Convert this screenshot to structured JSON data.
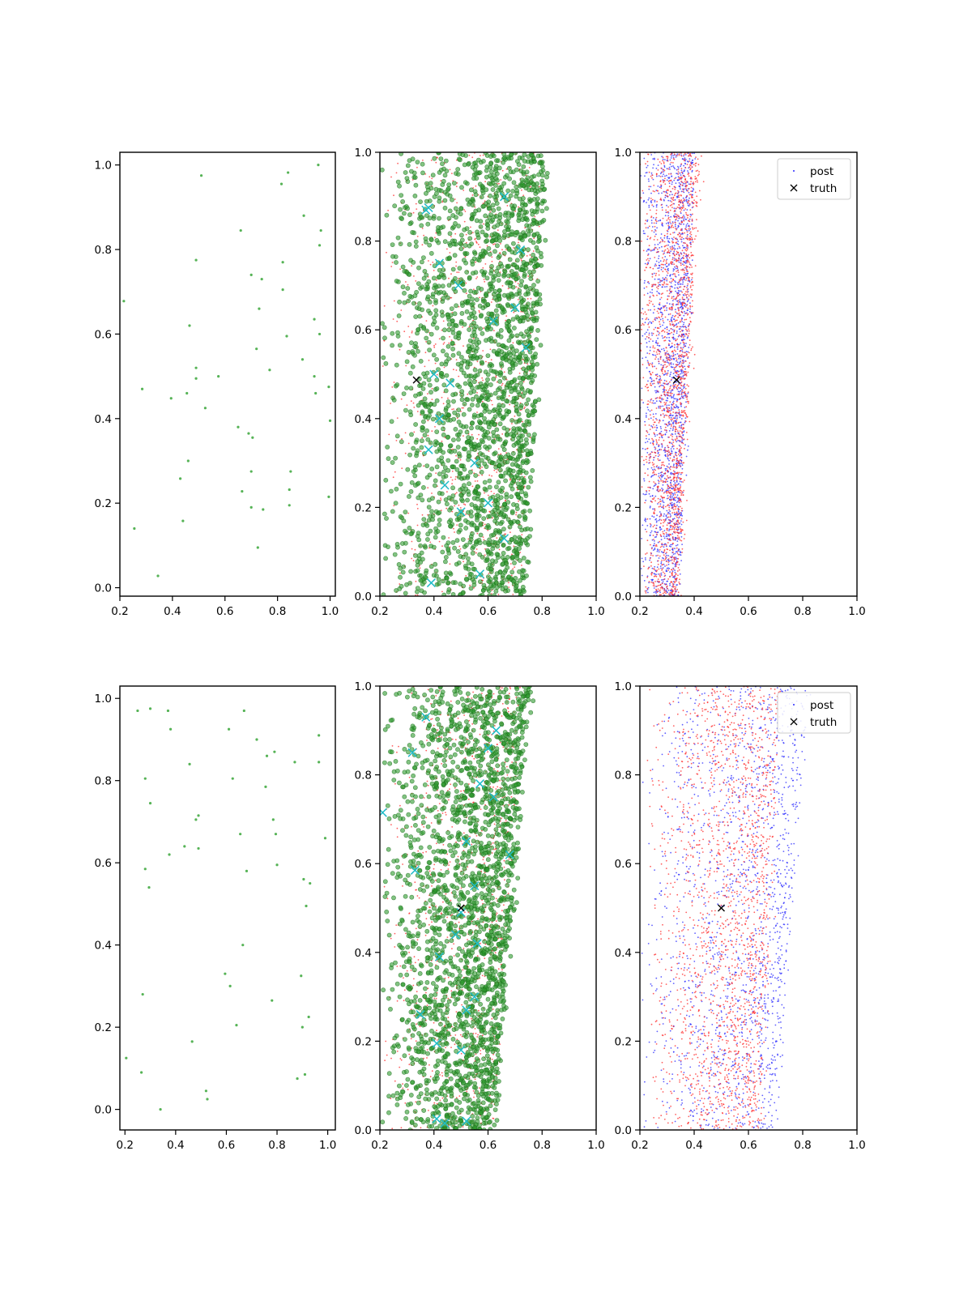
{
  "figure": {
    "rows": 2,
    "cols": 3
  },
  "chart_data": [
    {
      "panel": "top-left",
      "type": "scatter",
      "xlim": [
        0.2,
        1.02
      ],
      "ylim": [
        -0.02,
        1.03
      ],
      "xticks": [
        0.2,
        0.4,
        0.6,
        0.8,
        1.0
      ],
      "xtick_labels": [
        "0.2",
        "0.4",
        "0.6",
        "0.8",
        "1.0"
      ],
      "yticks": [
        0.0,
        0.2,
        0.4,
        0.6,
        0.8,
        1.0
      ],
      "ytick_labels": [
        "0.0",
        "0.2",
        "0.4",
        "0.6",
        "0.8",
        "1.0"
      ],
      "grid": false,
      "series": [
        {
          "color": "#2ca02c",
          "marker": "point",
          "size": 1.6,
          "points": [
            [
              0.51,
              0.975
            ],
            [
              0.84,
              0.982
            ],
            [
              0.955,
              1.0
            ],
            [
              0.815,
              0.955
            ],
            [
              0.9,
              0.88
            ],
            [
              0.66,
              0.845
            ],
            [
              0.965,
              0.845
            ],
            [
              0.96,
              0.81
            ],
            [
              0.49,
              0.775
            ],
            [
              0.82,
              0.77
            ],
            [
              0.7,
              0.74
            ],
            [
              0.74,
              0.73
            ],
            [
              0.82,
              0.705
            ],
            [
              0.215,
              0.678
            ],
            [
              0.73,
              0.66
            ],
            [
              0.94,
              0.635
            ],
            [
              0.465,
              0.62
            ],
            [
              0.96,
              0.6
            ],
            [
              0.835,
              0.595
            ],
            [
              0.72,
              0.565
            ],
            [
              0.895,
              0.54
            ],
            [
              0.49,
              0.52
            ],
            [
              0.575,
              0.5
            ],
            [
              0.49,
              0.495
            ],
            [
              0.77,
              0.515
            ],
            [
              0.94,
              0.5
            ],
            [
              0.285,
              0.47
            ],
            [
              0.995,
              0.475
            ],
            [
              0.455,
              0.46
            ],
            [
              0.945,
              0.46
            ],
            [
              0.395,
              0.448
            ],
            [
              0.525,
              0.425
            ],
            [
              1.0,
              0.395
            ],
            [
              0.65,
              0.38
            ],
            [
              0.69,
              0.365
            ],
            [
              0.705,
              0.355
            ],
            [
              0.46,
              0.3
            ],
            [
              0.7,
              0.275
            ],
            [
              0.85,
              0.275
            ],
            [
              0.43,
              0.258
            ],
            [
              0.845,
              0.232
            ],
            [
              0.665,
              0.228
            ],
            [
              0.995,
              0.215
            ],
            [
              0.845,
              0.195
            ],
            [
              0.7,
              0.19
            ],
            [
              0.745,
              0.185
            ],
            [
              0.44,
              0.158
            ],
            [
              0.255,
              0.14
            ],
            [
              0.725,
              0.095
            ],
            [
              0.345,
              0.028
            ]
          ]
        }
      ]
    },
    {
      "panel": "top-middle",
      "type": "scatter",
      "xlim": [
        0.2,
        1.0
      ],
      "ylim": [
        0.0,
        1.0
      ],
      "xticks": [
        0.2,
        0.4,
        0.6,
        0.8,
        1.0
      ],
      "xtick_labels": [
        "0.2",
        "0.4",
        "0.6",
        "0.8",
        "1.0"
      ],
      "yticks": [
        0.0,
        0.2,
        0.4,
        0.6,
        0.8,
        1.0
      ],
      "ytick_labels": [
        "0.0",
        "0.2",
        "0.4",
        "0.6",
        "0.8",
        "1.0"
      ],
      "grid": false,
      "density": {
        "red": {
          "count": 900,
          "x_min": 0.2,
          "x_right_bottom": 0.72,
          "x_right_top": 0.8
        },
        "green": {
          "count": 2200,
          "x_min": 0.2,
          "x_right_bottom": 0.74,
          "x_right_top": 0.82
        }
      },
      "series": [
        {
          "color": "#1fbcc8",
          "marker": "x",
          "points": [
            [
              0.38,
              0.875
            ],
            [
              0.37,
              0.87
            ],
            [
              0.42,
              0.75
            ],
            [
              0.49,
              0.7
            ],
            [
              0.66,
              0.9
            ],
            [
              0.72,
              0.78
            ],
            [
              0.7,
              0.65
            ],
            [
              0.62,
              0.62
            ],
            [
              0.74,
              0.56
            ],
            [
              0.4,
              0.5
            ],
            [
              0.46,
              0.48
            ],
            [
              0.42,
              0.4
            ],
            [
              0.38,
              0.33
            ],
            [
              0.55,
              0.3
            ],
            [
              0.44,
              0.25
            ],
            [
              0.5,
              0.19
            ],
            [
              0.6,
              0.21
            ],
            [
              0.66,
              0.13
            ],
            [
              0.57,
              0.05
            ],
            [
              0.39,
              0.03
            ]
          ]
        },
        {
          "color": "#000000",
          "marker": "x",
          "points": [
            [
              0.335,
              0.487
            ]
          ]
        }
      ]
    },
    {
      "panel": "top-right",
      "type": "scatter",
      "xlim": [
        0.2,
        1.0
      ],
      "ylim": [
        0.0,
        1.0
      ],
      "xticks": [
        0.2,
        0.4,
        0.6,
        0.8,
        1.0
      ],
      "xtick_labels": [
        "0.2",
        "0.4",
        "0.6",
        "0.8",
        "1.0"
      ],
      "yticks": [
        0.0,
        0.2,
        0.4,
        0.6,
        0.8,
        1.0
      ],
      "ytick_labels": [
        "0.0",
        "0.2",
        "0.4",
        "0.6",
        "0.8",
        "1.0"
      ],
      "grid": false,
      "legend": {
        "position": "upper right",
        "entries": [
          {
            "label": "post",
            "marker": "dot"
          },
          {
            "label": "truth",
            "marker": "x"
          }
        ]
      },
      "density": {
        "blue": {
          "count": 1800,
          "x_min": 0.2,
          "x_right_bottom": 0.34,
          "x_right_top": 0.4
        },
        "red": {
          "count": 1800,
          "x_min": 0.2,
          "x_right_bottom": 0.34,
          "x_right_top": 0.42
        }
      },
      "series": [
        {
          "color": "#000000",
          "marker": "x",
          "points": [
            [
              0.335,
              0.487
            ]
          ]
        }
      ]
    },
    {
      "panel": "bottom-left",
      "type": "scatter",
      "xlim": [
        0.18,
        1.03
      ],
      "ylim": [
        -0.05,
        1.03
      ],
      "xticks": [
        0.2,
        0.4,
        0.6,
        0.8,
        1.0
      ],
      "xtick_labels": [
        "0.2",
        "0.4",
        "0.6",
        "0.8",
        "1.0"
      ],
      "yticks": [
        0.0,
        0.2,
        0.4,
        0.6,
        0.8,
        1.0
      ],
      "ytick_labels": [
        "0.0",
        "0.2",
        "0.4",
        "0.6",
        "0.8",
        "1.0"
      ],
      "grid": false,
      "series": [
        {
          "color": "#2ca02c",
          "marker": "point",
          "size": 1.6,
          "points": [
            [
              0.25,
              0.97
            ],
            [
              0.3,
              0.975
            ],
            [
              0.37,
              0.97
            ],
            [
              0.67,
              0.97
            ],
            [
              0.38,
              0.925
            ],
            [
              0.61,
              0.925
            ],
            [
              0.72,
              0.9
            ],
            [
              0.965,
              0.91
            ],
            [
              0.76,
              0.86
            ],
            [
              0.79,
              0.87
            ],
            [
              0.455,
              0.84
            ],
            [
              0.87,
              0.845
            ],
            [
              0.965,
              0.845
            ],
            [
              0.28,
              0.805
            ],
            [
              0.625,
              0.805
            ],
            [
              0.755,
              0.785
            ],
            [
              0.3,
              0.745
            ],
            [
              0.49,
              0.715
            ],
            [
              0.785,
              0.705
            ],
            [
              0.48,
              0.705
            ],
            [
              0.655,
              0.67
            ],
            [
              0.795,
              0.67
            ],
            [
              0.99,
              0.66
            ],
            [
              0.435,
              0.64
            ],
            [
              0.49,
              0.635
            ],
            [
              0.375,
              0.62
            ],
            [
              0.8,
              0.595
            ],
            [
              0.28,
              0.585
            ],
            [
              0.68,
              0.58
            ],
            [
              0.905,
              0.56
            ],
            [
              0.93,
              0.55
            ],
            [
              0.295,
              0.54
            ],
            [
              0.915,
              0.495
            ],
            [
              0.665,
              0.4
            ],
            [
              0.595,
              0.33
            ],
            [
              0.895,
              0.325
            ],
            [
              0.615,
              0.3
            ],
            [
              0.27,
              0.28
            ],
            [
              0.78,
              0.265
            ],
            [
              0.925,
              0.225
            ],
            [
              0.64,
              0.205
            ],
            [
              0.9,
              0.2
            ],
            [
              0.465,
              0.165
            ],
            [
              0.205,
              0.125
            ],
            [
              0.265,
              0.09
            ],
            [
              0.91,
              0.085
            ],
            [
              0.88,
              0.075
            ],
            [
              0.52,
              0.045
            ],
            [
              0.525,
              0.025
            ],
            [
              0.34,
              0.0
            ]
          ]
        }
      ]
    },
    {
      "panel": "bottom-middle",
      "type": "scatter",
      "xlim": [
        0.2,
        1.0
      ],
      "ylim": [
        0.0,
        1.0
      ],
      "xticks": [
        0.2,
        0.4,
        0.6,
        0.8,
        1.0
      ],
      "xtick_labels": [
        "0.2",
        "0.4",
        "0.6",
        "0.8",
        "1.0"
      ],
      "yticks": [
        0.0,
        0.2,
        0.4,
        0.6,
        0.8,
        1.0
      ],
      "ytick_labels": [
        "0.0",
        "0.2",
        "0.4",
        "0.6",
        "0.8",
        "1.0"
      ],
      "grid": false,
      "density": {
        "red": {
          "count": 900,
          "x_min": 0.2,
          "x_right_bottom": 0.62,
          "x_right_top": 0.72
        },
        "green": {
          "count": 2200,
          "x_min": 0.2,
          "x_right_bottom": 0.62,
          "x_right_top": 0.76
        }
      },
      "series": [
        {
          "color": "#1fbcc8",
          "marker": "x",
          "points": [
            [
              0.21,
              0.715
            ],
            [
              0.32,
              0.85
            ],
            [
              0.37,
              0.93
            ],
            [
              0.63,
              0.9
            ],
            [
              0.6,
              0.86
            ],
            [
              0.57,
              0.78
            ],
            [
              0.62,
              0.75
            ],
            [
              0.52,
              0.65
            ],
            [
              0.68,
              0.62
            ],
            [
              0.33,
              0.585
            ],
            [
              0.55,
              0.55
            ],
            [
              0.5,
              0.49
            ],
            [
              0.48,
              0.44
            ],
            [
              0.56,
              0.42
            ],
            [
              0.42,
              0.39
            ],
            [
              0.52,
              0.27
            ],
            [
              0.55,
              0.3
            ],
            [
              0.35,
              0.26
            ],
            [
              0.41,
              0.195
            ],
            [
              0.5,
              0.18
            ],
            [
              0.41,
              0.025
            ],
            [
              0.44,
              0.015
            ],
            [
              0.52,
              0.02
            ]
          ]
        },
        {
          "color": "#000000",
          "marker": "x",
          "points": [
            [
              0.5,
              0.5
            ]
          ]
        }
      ]
    },
    {
      "panel": "bottom-right",
      "type": "scatter",
      "xlim": [
        0.2,
        1.0
      ],
      "ylim": [
        0.0,
        1.0
      ],
      "xticks": [
        0.2,
        0.4,
        0.6,
        0.8,
        1.0
      ],
      "xtick_labels": [
        "0.2",
        "0.4",
        "0.6",
        "0.8",
        "1.0"
      ],
      "yticks": [
        0.0,
        0.2,
        0.4,
        0.6,
        0.8,
        1.0
      ],
      "ytick_labels": [
        "0.0",
        "0.2",
        "0.4",
        "0.6",
        "0.8",
        "1.0"
      ],
      "grid": false,
      "legend": {
        "position": "upper right",
        "entries": [
          {
            "label": "post",
            "marker": "dot"
          },
          {
            "label": "truth",
            "marker": "x"
          }
        ]
      },
      "density": {
        "blue": {
          "count": 1600,
          "x_min": 0.2,
          "x_right_bottom": 0.7,
          "x_right_top": 0.82
        },
        "red": {
          "count": 1800,
          "x_min": 0.22,
          "x_right_bottom": 0.64,
          "x_right_top": 0.72
        }
      },
      "series": [
        {
          "color": "#000000",
          "marker": "x",
          "points": [
            [
              0.5,
              0.5
            ]
          ]
        }
      ]
    }
  ]
}
